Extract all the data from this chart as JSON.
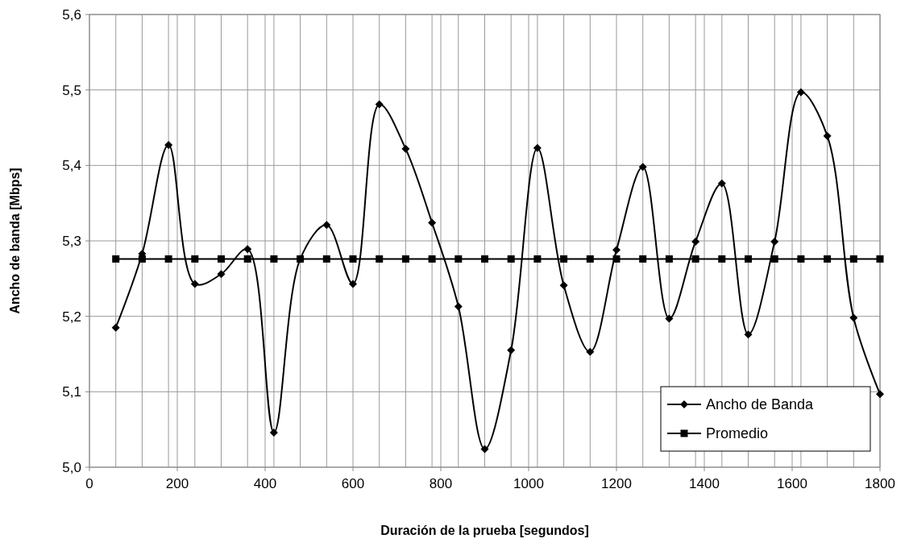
{
  "chart_data": {
    "type": "line",
    "xlabel": "Duración de la prueba [segundos]",
    "ylabel": "Ancho de banda [Mbps]",
    "x": [
      60,
      120,
      180,
      240,
      300,
      360,
      420,
      480,
      540,
      600,
      660,
      720,
      780,
      840,
      900,
      960,
      1020,
      1080,
      1140,
      1200,
      1260,
      1320,
      1380,
      1440,
      1500,
      1560,
      1620,
      1680,
      1740,
      1800
    ],
    "series": [
      {
        "name": "Ancho de Banda",
        "color": "#000000",
        "marker": "diamond",
        "values": [
          5.185,
          5.283,
          5.427,
          5.243,
          5.256,
          5.289,
          5.046,
          5.276,
          5.321,
          5.243,
          5.481,
          5.422,
          5.324,
          5.213,
          5.024,
          5.155,
          5.423,
          5.241,
          5.153,
          5.288,
          5.398,
          5.197,
          5.299,
          5.376,
          5.176,
          5.299,
          5.497,
          5.439,
          5.198,
          5.097
        ]
      },
      {
        "name": "Promedio",
        "color": "#000000",
        "marker": "square",
        "values": [
          5.276,
          5.276,
          5.276,
          5.276,
          5.276,
          5.276,
          5.276,
          5.276,
          5.276,
          5.276,
          5.276,
          5.276,
          5.276,
          5.276,
          5.276,
          5.276,
          5.276,
          5.276,
          5.276,
          5.276,
          5.276,
          5.276,
          5.276,
          5.276,
          5.276,
          5.276,
          5.276,
          5.276,
          5.276,
          5.276
        ]
      }
    ],
    "xlim": [
      0,
      1800
    ],
    "xticks": [
      0,
      {
        "value": 60,
        "label": null
      },
      {
        "value": 120,
        "label": null
      },
      {
        "value": 180,
        "label": null
      },
      200,
      {
        "value": 240,
        "label": null
      },
      {
        "value": 300,
        "label": null
      },
      {
        "value": 360,
        "label": null
      },
      400,
      {
        "value": 420,
        "label": null
      },
      {
        "value": 480,
        "label": null
      },
      {
        "value": 540,
        "label": null
      },
      600,
      {
        "value": 660,
        "label": null
      },
      {
        "value": 720,
        "label": null
      },
      {
        "value": 780,
        "label": null
      },
      800,
      {
        "value": 840,
        "label": null
      },
      {
        "value": 900,
        "label": null
      },
      {
        "value": 960,
        "label": null
      },
      1000,
      {
        "value": 1020,
        "label": null
      },
      {
        "value": 1080,
        "label": null
      },
      {
        "value": 1140,
        "label": null
      },
      1200,
      {
        "value": 1260,
        "label": null
      },
      {
        "value": 1320,
        "label": null
      },
      {
        "value": 1380,
        "label": null
      },
      1400,
      {
        "value": 1440,
        "label": null
      },
      {
        "value": 1500,
        "label": null
      },
      {
        "value": 1560,
        "label": null
      },
      1600,
      {
        "value": 1620,
        "label": null
      },
      {
        "value": 1680,
        "label": null
      },
      {
        "value": 1740,
        "label": null
      },
      1800
    ],
    "ylim": [
      5.0,
      5.6
    ],
    "yticks": [
      {
        "value": 5.0,
        "label": "5,0"
      },
      {
        "value": 5.1,
        "label": "5,1"
      },
      {
        "value": 5.2,
        "label": "5,2"
      },
      {
        "value": 5.3,
        "label": "5,3"
      },
      {
        "value": 5.4,
        "label": "5,4"
      },
      {
        "value": 5.5,
        "label": "5,5"
      },
      {
        "value": 5.6,
        "label": "5,6"
      }
    ],
    "grid": true,
    "legend": "bottom right"
  }
}
